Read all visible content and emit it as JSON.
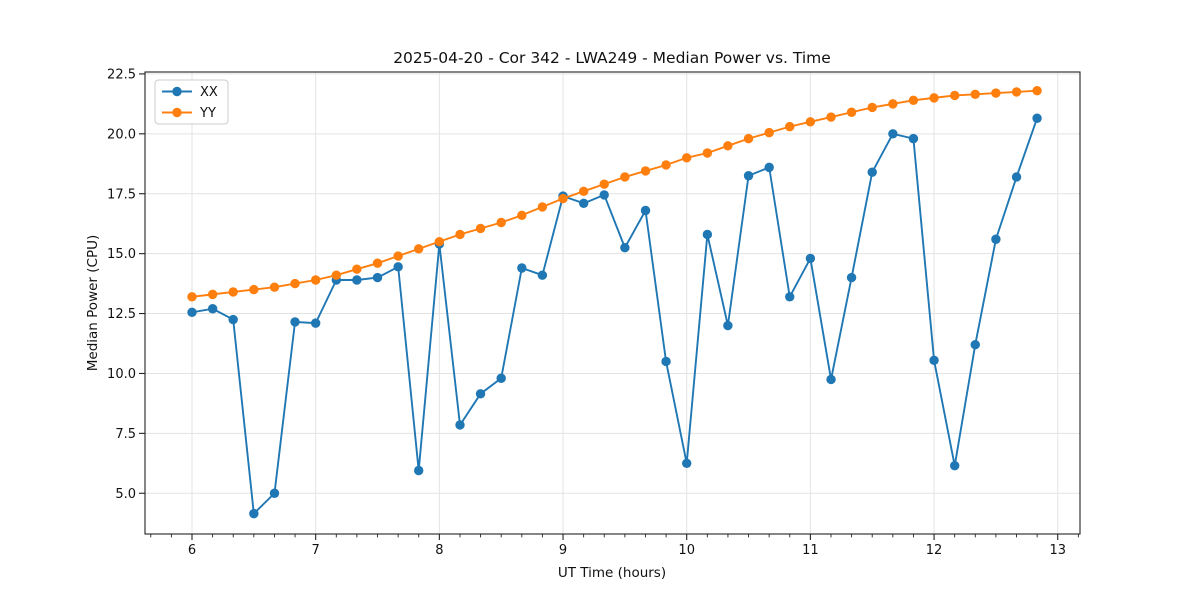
{
  "figure": {
    "background": "#ffffff"
  },
  "chart_data": {
    "type": "line",
    "title": "2025-04-20 - Cor 342 - LWA249 - Median Power vs. Time",
    "xlabel": "UT Time (hours)",
    "ylabel": "Median Power (CPU)",
    "xlim": [
      5.62,
      13.18
    ],
    "ylim": [
      3.3,
      22.58
    ],
    "grid": true,
    "legend_position": "upper left",
    "x_ticks": [
      6,
      7,
      8,
      9,
      10,
      11,
      12,
      13
    ],
    "x_tick_labels": [
      "6",
      "7",
      "8",
      "9",
      "10",
      "11",
      "12",
      "13"
    ],
    "x_minor_tick_step": 0.1667,
    "y_ticks": [
      5.0,
      7.5,
      10.0,
      12.5,
      15.0,
      17.5,
      20.0,
      22.5
    ],
    "y_tick_labels": [
      "5.0",
      "7.5",
      "10.0",
      "12.5",
      "15.0",
      "17.5",
      "20.0",
      "22.5"
    ],
    "x": [
      6.0,
      6.167,
      6.333,
      6.5,
      6.667,
      6.833,
      7.0,
      7.167,
      7.333,
      7.5,
      7.667,
      7.833,
      8.0,
      8.167,
      8.333,
      8.5,
      8.667,
      8.833,
      9.0,
      9.167,
      9.333,
      9.5,
      9.667,
      9.833,
      10.0,
      10.167,
      10.333,
      10.5,
      10.667,
      10.833,
      11.0,
      11.167,
      11.333,
      11.5,
      11.667,
      11.833,
      12.0,
      12.167,
      12.333,
      12.5,
      12.667,
      12.833
    ],
    "series": [
      {
        "name": "XX",
        "color": "#1f77b4",
        "values": [
          12.55,
          12.7,
          12.25,
          4.15,
          5.0,
          12.15,
          12.1,
          13.9,
          13.9,
          14.0,
          14.45,
          5.95,
          15.4,
          7.85,
          9.15,
          9.8,
          14.4,
          14.1,
          17.4,
          17.1,
          17.45,
          15.25,
          16.8,
          10.5,
          6.25,
          15.8,
          12.0,
          18.25,
          18.6,
          13.2,
          14.8,
          9.75,
          14.0,
          18.4,
          20.0,
          19.8,
          10.55,
          6.15,
          11.2,
          15.6,
          18.2,
          20.65
        ]
      },
      {
        "name": "YY",
        "color": "#ff7f0e",
        "values": [
          13.2,
          13.3,
          13.4,
          13.5,
          13.6,
          13.75,
          13.9,
          14.1,
          14.35,
          14.6,
          14.9,
          15.2,
          15.5,
          15.8,
          16.05,
          16.3,
          16.6,
          16.95,
          17.3,
          17.6,
          17.9,
          18.2,
          18.45,
          18.7,
          19.0,
          19.2,
          19.5,
          19.8,
          20.05,
          20.3,
          20.5,
          20.7,
          20.9,
          21.1,
          21.25,
          21.4,
          21.5,
          21.6,
          21.65,
          21.7,
          21.75,
          21.8
        ]
      }
    ],
    "style": {
      "grid_color": "#e3e3e3",
      "spine_color": "#222222",
      "text_color": "#111111",
      "marker_radius": 4.7,
      "line_width": 1.9
    }
  }
}
